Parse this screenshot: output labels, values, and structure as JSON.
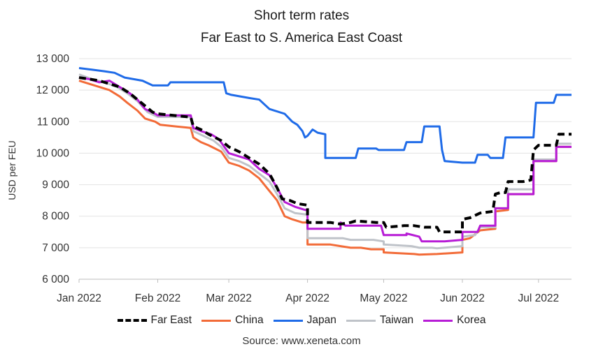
{
  "chart_data": {
    "type": "line",
    "title": "Short term rates",
    "subtitle": "Far East to S. America East Coast",
    "xlabel": "",
    "ylabel": "USD per FEU",
    "ylim": [
      6000,
      13000
    ],
    "yticks": [
      6000,
      7000,
      8000,
      9000,
      10000,
      11000,
      12000,
      13000
    ],
    "ytick_labels": [
      "6 000",
      "7 000",
      "8 000",
      "9 000",
      "10 000",
      "11 000",
      "12 000",
      "13 000"
    ],
    "xlim": [
      "2022-01-01",
      "2022-07-14"
    ],
    "xticks": [
      "2022-01-01",
      "2022-02-01",
      "2022-03-01",
      "2022-04-01",
      "2022-05-01",
      "2022-06-01",
      "2022-07-01"
    ],
    "xtick_labels": [
      "Jan 2022",
      "Feb 2022",
      "Mar 2022",
      "Apr 2022",
      "May 2022",
      "Jun 2022",
      "Jul 2022"
    ],
    "grid": "horizontal",
    "legend_position": "bottom",
    "source": "Source: www.xeneta.com",
    "series": [
      {
        "name": "Far East",
        "color": "#000000",
        "style": "dashed",
        "points": [
          [
            "2022-01-01",
            12400
          ],
          [
            "2022-01-05",
            12350
          ],
          [
            "2022-01-09",
            12300
          ],
          [
            "2022-01-13",
            12200
          ],
          [
            "2022-01-17",
            12100
          ],
          [
            "2022-01-21",
            11900
          ],
          [
            "2022-01-24",
            11700
          ],
          [
            "2022-01-27",
            11500
          ],
          [
            "2022-01-30",
            11300
          ],
          [
            "2022-02-01",
            11250
          ],
          [
            "2022-02-13",
            11150
          ],
          [
            "2022-02-14",
            11150
          ],
          [
            "2022-02-15",
            10850
          ],
          [
            "2022-02-18",
            10750
          ],
          [
            "2022-02-21",
            10600
          ],
          [
            "2022-02-26",
            10400
          ],
          [
            "2022-03-01",
            10200
          ],
          [
            "2022-03-05",
            10050
          ],
          [
            "2022-03-09",
            9850
          ],
          [
            "2022-03-13",
            9650
          ],
          [
            "2022-03-17",
            9350
          ],
          [
            "2022-03-20",
            8900
          ],
          [
            "2022-03-22",
            8550
          ],
          [
            "2022-03-25",
            8500
          ],
          [
            "2022-03-28",
            8400
          ],
          [
            "2022-04-01",
            8350
          ],
          [
            "2022-04-01",
            7800
          ],
          [
            "2022-04-10",
            7800
          ],
          [
            "2022-04-14",
            7750
          ],
          [
            "2022-04-18",
            7800
          ],
          [
            "2022-04-20",
            7850
          ],
          [
            "2022-04-28",
            7800
          ],
          [
            "2022-05-01",
            7800
          ],
          [
            "2022-05-02",
            7650
          ],
          [
            "2022-05-09",
            7700
          ],
          [
            "2022-05-13",
            7700
          ],
          [
            "2022-05-17",
            7650
          ],
          [
            "2022-05-22",
            7650
          ],
          [
            "2022-05-23",
            7500
          ],
          [
            "2022-06-01",
            7500
          ],
          [
            "2022-06-01",
            7900
          ],
          [
            "2022-06-04",
            7950
          ],
          [
            "2022-06-08",
            8100
          ],
          [
            "2022-06-13",
            8150
          ],
          [
            "2022-06-14",
            8700
          ],
          [
            "2022-06-16",
            8750
          ],
          [
            "2022-06-18",
            8750
          ],
          [
            "2022-06-19",
            9100
          ],
          [
            "2022-06-25",
            9100
          ],
          [
            "2022-06-28",
            9150
          ],
          [
            "2022-06-29",
            10100
          ],
          [
            "2022-07-01",
            10250
          ],
          [
            "2022-07-08",
            10250
          ],
          [
            "2022-07-09",
            10600
          ],
          [
            "2022-07-14",
            10600
          ]
        ]
      },
      {
        "name": "China",
        "color": "#F26B38",
        "style": "solid",
        "points": [
          [
            "2022-01-01",
            12300
          ],
          [
            "2022-01-05",
            12200
          ],
          [
            "2022-01-09",
            12100
          ],
          [
            "2022-01-13",
            12000
          ],
          [
            "2022-01-17",
            11800
          ],
          [
            "2022-01-20",
            11600
          ],
          [
            "2022-01-24",
            11350
          ],
          [
            "2022-01-27",
            11100
          ],
          [
            "2022-01-31",
            11000
          ],
          [
            "2022-02-02",
            10900
          ],
          [
            "2022-02-14",
            10800
          ],
          [
            "2022-02-15",
            10500
          ],
          [
            "2022-02-18",
            10350
          ],
          [
            "2022-02-21",
            10250
          ],
          [
            "2022-02-26",
            10050
          ],
          [
            "2022-03-01",
            9700
          ],
          [
            "2022-03-05",
            9600
          ],
          [
            "2022-03-09",
            9450
          ],
          [
            "2022-03-13",
            9200
          ],
          [
            "2022-03-16",
            8900
          ],
          [
            "2022-03-20",
            8500
          ],
          [
            "2022-03-23",
            8000
          ],
          [
            "2022-03-26",
            7900
          ],
          [
            "2022-03-30",
            7800
          ],
          [
            "2022-04-01",
            7800
          ],
          [
            "2022-04-01",
            7100
          ],
          [
            "2022-04-10",
            7100
          ],
          [
            "2022-04-14",
            7050
          ],
          [
            "2022-04-18",
            7000
          ],
          [
            "2022-04-22",
            7000
          ],
          [
            "2022-04-26",
            6950
          ],
          [
            "2022-05-01",
            6950
          ],
          [
            "2022-05-01",
            6850
          ],
          [
            "2022-05-13",
            6800
          ],
          [
            "2022-05-15",
            6780
          ],
          [
            "2022-05-22",
            6800
          ],
          [
            "2022-06-01",
            6850
          ],
          [
            "2022-06-01",
            7250
          ],
          [
            "2022-06-04",
            7300
          ],
          [
            "2022-06-08",
            7550
          ],
          [
            "2022-06-14",
            7600
          ],
          [
            "2022-06-14",
            8150
          ],
          [
            "2022-06-19",
            8200
          ],
          [
            "2022-06-19",
            8700
          ],
          [
            "2022-06-29",
            8700
          ],
          [
            "2022-06-29",
            9750
          ],
          [
            "2022-07-08",
            9750
          ],
          [
            "2022-07-08",
            10200
          ],
          [
            "2022-07-14",
            10200
          ]
        ]
      },
      {
        "name": "Japan",
        "color": "#1F6BE8",
        "style": "solid",
        "points": [
          [
            "2022-01-01",
            12700
          ],
          [
            "2022-01-06",
            12650
          ],
          [
            "2022-01-11",
            12600
          ],
          [
            "2022-01-15",
            12550
          ],
          [
            "2022-01-19",
            12400
          ],
          [
            "2022-01-26",
            12300
          ],
          [
            "2022-01-30",
            12150
          ],
          [
            "2022-02-05",
            12150
          ],
          [
            "2022-02-06",
            12250
          ],
          [
            "2022-02-27",
            12250
          ],
          [
            "2022-02-28",
            11900
          ],
          [
            "2022-03-02",
            11850
          ],
          [
            "2022-03-09",
            11750
          ],
          [
            "2022-03-13",
            11700
          ],
          [
            "2022-03-17",
            11400
          ],
          [
            "2022-03-23",
            11250
          ],
          [
            "2022-03-26",
            11000
          ],
          [
            "2022-03-28",
            10900
          ],
          [
            "2022-03-30",
            10700
          ],
          [
            "2022-03-31",
            10500
          ],
          [
            "2022-04-01",
            10550
          ],
          [
            "2022-04-03",
            10750
          ],
          [
            "2022-04-05",
            10650
          ],
          [
            "2022-04-08",
            10600
          ],
          [
            "2022-04-08",
            9850
          ],
          [
            "2022-04-20",
            9850
          ],
          [
            "2022-04-21",
            10150
          ],
          [
            "2022-04-28",
            10150
          ],
          [
            "2022-04-29",
            10100
          ],
          [
            "2022-05-09",
            10100
          ],
          [
            "2022-05-10",
            10350
          ],
          [
            "2022-05-16",
            10350
          ],
          [
            "2022-05-17",
            10850
          ],
          [
            "2022-05-23",
            10850
          ],
          [
            "2022-05-24",
            10100
          ],
          [
            "2022-05-25",
            9750
          ],
          [
            "2022-06-01",
            9700
          ],
          [
            "2022-06-06",
            9700
          ],
          [
            "2022-06-07",
            9950
          ],
          [
            "2022-06-11",
            9950
          ],
          [
            "2022-06-12",
            9850
          ],
          [
            "2022-06-17",
            9850
          ],
          [
            "2022-06-18",
            10500
          ],
          [
            "2022-06-29",
            10500
          ],
          [
            "2022-06-30",
            11600
          ],
          [
            "2022-07-07",
            11600
          ],
          [
            "2022-07-08",
            11850
          ],
          [
            "2022-07-14",
            11850
          ]
        ]
      },
      {
        "name": "Taiwan",
        "color": "#BFC3C9",
        "style": "solid",
        "points": [
          [
            "2022-01-01",
            12500
          ],
          [
            "2022-01-06",
            12350
          ],
          [
            "2022-01-11",
            12250
          ],
          [
            "2022-01-16",
            12100
          ],
          [
            "2022-01-20",
            11900
          ],
          [
            "2022-01-24",
            11650
          ],
          [
            "2022-01-28",
            11300
          ],
          [
            "2022-02-01",
            11150
          ],
          [
            "2022-02-14",
            11150
          ],
          [
            "2022-02-15",
            10700
          ],
          [
            "2022-02-19",
            10550
          ],
          [
            "2022-02-23",
            10400
          ],
          [
            "2022-02-26",
            10200
          ],
          [
            "2022-03-01",
            9850
          ],
          [
            "2022-03-05",
            9750
          ],
          [
            "2022-03-09",
            9600
          ],
          [
            "2022-03-13",
            9350
          ],
          [
            "2022-03-17",
            9100
          ],
          [
            "2022-03-20",
            8700
          ],
          [
            "2022-03-23",
            8250
          ],
          [
            "2022-03-27",
            8100
          ],
          [
            "2022-04-01",
            8050
          ],
          [
            "2022-04-01",
            7300
          ],
          [
            "2022-04-15",
            7300
          ],
          [
            "2022-04-18",
            7250
          ],
          [
            "2022-04-27",
            7250
          ],
          [
            "2022-05-01",
            7200
          ],
          [
            "2022-05-01",
            7100
          ],
          [
            "2022-05-12",
            7050
          ],
          [
            "2022-05-15",
            7000
          ],
          [
            "2022-05-20",
            7000
          ],
          [
            "2022-05-22",
            6980
          ],
          [
            "2022-06-01",
            7050
          ],
          [
            "2022-06-01",
            7350
          ],
          [
            "2022-06-06",
            7400
          ],
          [
            "2022-06-08",
            7650
          ],
          [
            "2022-06-14",
            7650
          ],
          [
            "2022-06-14",
            8250
          ],
          [
            "2022-06-19",
            8250
          ],
          [
            "2022-06-19",
            8850
          ],
          [
            "2022-06-29",
            8850
          ],
          [
            "2022-06-29",
            9800
          ],
          [
            "2022-07-08",
            9800
          ],
          [
            "2022-07-08",
            10300
          ],
          [
            "2022-07-14",
            10300
          ]
        ]
      },
      {
        "name": "Korea",
        "color": "#B71CD6",
        "style": "solid",
        "points": [
          [
            "2022-01-01",
            12400
          ],
          [
            "2022-01-05",
            12350
          ],
          [
            "2022-01-09",
            12250
          ],
          [
            "2022-01-13",
            12300
          ],
          [
            "2022-01-17",
            12100
          ],
          [
            "2022-01-21",
            11900
          ],
          [
            "2022-01-24",
            11700
          ],
          [
            "2022-01-27",
            11400
          ],
          [
            "2022-01-31",
            11250
          ],
          [
            "2022-02-01",
            11200
          ],
          [
            "2022-02-14",
            11200
          ],
          [
            "2022-02-15",
            10800
          ],
          [
            "2022-02-18",
            10700
          ],
          [
            "2022-02-22",
            10600
          ],
          [
            "2022-02-25",
            10450
          ],
          [
            "2022-03-01",
            10000
          ],
          [
            "2022-03-05",
            9900
          ],
          [
            "2022-03-09",
            9800
          ],
          [
            "2022-03-13",
            9500
          ],
          [
            "2022-03-17",
            9300
          ],
          [
            "2022-03-20",
            8900
          ],
          [
            "2022-03-23",
            8450
          ],
          [
            "2022-03-27",
            8300
          ],
          [
            "2022-03-31",
            8200
          ],
          [
            "2022-04-01",
            8200
          ],
          [
            "2022-04-01",
            7600
          ],
          [
            "2022-04-14",
            7600
          ],
          [
            "2022-04-14",
            7800
          ],
          [
            "2022-04-16",
            7700
          ],
          [
            "2022-04-30",
            7700
          ],
          [
            "2022-05-01",
            7400
          ],
          [
            "2022-05-10",
            7400
          ],
          [
            "2022-05-10",
            7450
          ],
          [
            "2022-05-15",
            7350
          ],
          [
            "2022-05-16",
            7200
          ],
          [
            "2022-05-25",
            7200
          ],
          [
            "2022-06-01",
            7250
          ],
          [
            "2022-06-01",
            7500
          ],
          [
            "2022-06-07",
            7500
          ],
          [
            "2022-06-08",
            7700
          ],
          [
            "2022-06-14",
            7700
          ],
          [
            "2022-06-14",
            8250
          ],
          [
            "2022-06-19",
            8250
          ],
          [
            "2022-06-19",
            8700
          ],
          [
            "2022-06-29",
            8700
          ],
          [
            "2022-06-29",
            9750
          ],
          [
            "2022-07-08",
            9750
          ],
          [
            "2022-07-08",
            10200
          ],
          [
            "2022-07-14",
            10200
          ]
        ]
      }
    ]
  }
}
